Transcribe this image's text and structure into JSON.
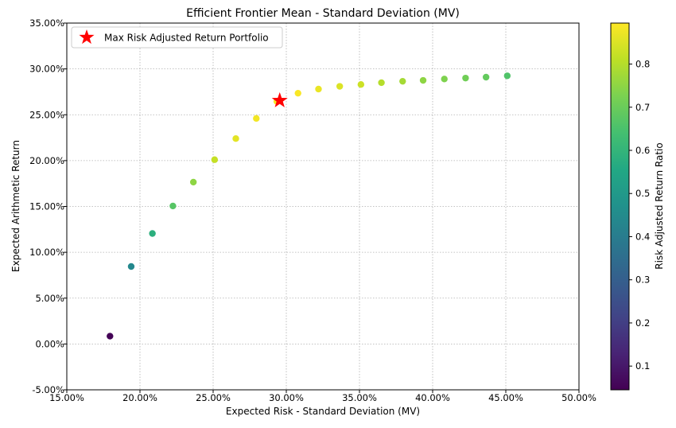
{
  "chart_data": {
    "type": "scatter",
    "title": "Efficient Frontier Mean - Standard Deviation (MV)",
    "xlabel": "Expected Risk - Standard Deviation (MV)",
    "ylabel": "Expected Arithmetic Return",
    "xlim": [
      0.15,
      0.5
    ],
    "ylim": [
      -0.05,
      0.35
    ],
    "x_ticks": [
      "15.00%",
      "20.00%",
      "25.00%",
      "30.00%",
      "35.00%",
      "40.00%",
      "45.00%",
      "50.00%"
    ],
    "y_ticks": [
      "-5.00%",
      "0.00%",
      "5.00%",
      "10.00%",
      "15.00%",
      "20.00%",
      "25.00%",
      "30.00%",
      "35.00%"
    ],
    "grid": true,
    "colormap": "viridis",
    "colorbar": {
      "label": "Risk Adjusted Return Ratio",
      "range": [
        0.045,
        0.895
      ],
      "ticks": [
        "0.1",
        "0.2",
        "0.3",
        "0.4",
        "0.5",
        "0.6",
        "0.7",
        "0.8"
      ]
    },
    "legend": {
      "position": "top-left",
      "entries": [
        "Max Risk Adjusted Return Portfolio"
      ]
    },
    "max_portfolio": {
      "x": 0.2955,
      "y": 0.2655,
      "color": "#ff0000",
      "marker": "star"
    },
    "points": [
      {
        "x": 0.1795,
        "y": 0.0085,
        "ratio": 0.05
      },
      {
        "x": 0.194,
        "y": 0.0845,
        "ratio": 0.44
      },
      {
        "x": 0.2085,
        "y": 0.1205,
        "ratio": 0.58
      },
      {
        "x": 0.2225,
        "y": 0.1505,
        "ratio": 0.67
      },
      {
        "x": 0.2365,
        "y": 0.1765,
        "ratio": 0.75
      },
      {
        "x": 0.251,
        "y": 0.201,
        "ratio": 0.82
      },
      {
        "x": 0.2655,
        "y": 0.224,
        "ratio": 0.86
      },
      {
        "x": 0.2795,
        "y": 0.246,
        "ratio": 0.88
      },
      {
        "x": 0.2935,
        "y": 0.2645,
        "ratio": 0.89
      },
      {
        "x": 0.308,
        "y": 0.2735,
        "ratio": 0.89
      },
      {
        "x": 0.322,
        "y": 0.278,
        "ratio": 0.87
      },
      {
        "x": 0.3365,
        "y": 0.281,
        "ratio": 0.85
      },
      {
        "x": 0.351,
        "y": 0.283,
        "ratio": 0.83
      },
      {
        "x": 0.365,
        "y": 0.285,
        "ratio": 0.8
      },
      {
        "x": 0.3795,
        "y": 0.2865,
        "ratio": 0.78
      },
      {
        "x": 0.3935,
        "y": 0.2875,
        "ratio": 0.75
      },
      {
        "x": 0.408,
        "y": 0.289,
        "ratio": 0.73
      },
      {
        "x": 0.4225,
        "y": 0.29,
        "ratio": 0.71
      },
      {
        "x": 0.4365,
        "y": 0.291,
        "ratio": 0.69
      },
      {
        "x": 0.451,
        "y": 0.2925,
        "ratio": 0.66
      }
    ]
  }
}
